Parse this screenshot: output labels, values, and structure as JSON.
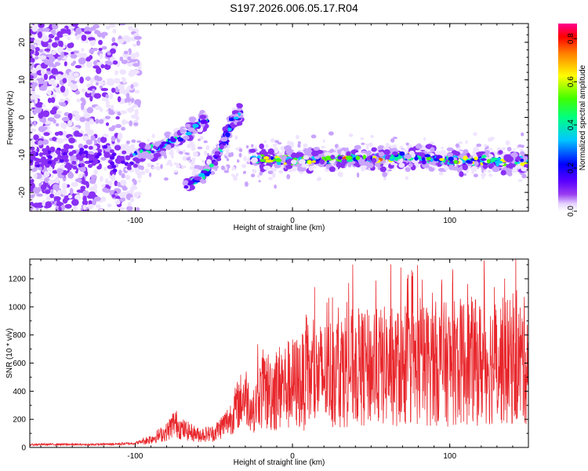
{
  "title": "S197.2026.006.05.17.R04",
  "colors": {
    "snr_line": "#e8262b",
    "axes": "#000000",
    "background": "#ffffff"
  },
  "chart_data": [
    {
      "type": "heatmap",
      "xlabel": "Height of straight line (km)",
      "ylabel": "Frequency (Hz)",
      "xlim": [
        -167,
        150
      ],
      "ylim": [
        -25,
        25
      ],
      "x_ticks": [
        -100,
        0,
        100
      ],
      "y_ticks": [
        -20,
        -10,
        0,
        10,
        20
      ],
      "grid": false,
      "colorbar": {
        "label": "Normalized spectral amplitude",
        "range": [
          0,
          0.87
        ],
        "ticks": [
          "0.0",
          "0.2",
          "0.4",
          "0.6",
          "0.8"
        ],
        "colormap": [
          "#ffffff",
          "#e4d2ff",
          "#9a3df0",
          "#5a00ff",
          "#0000ff",
          "#00c8ff",
          "#00ff80",
          "#40ff00",
          "#ffff00",
          "#ff8000",
          "#ff0000",
          "#ff0090"
        ]
      },
      "traces": [
        {
          "description": "main track",
          "x": [
            -25,
            0,
            25,
            50,
            75,
            100,
            125,
            150
          ],
          "y": [
            -11,
            -11.5,
            -11,
            -11,
            -10.5,
            -11.5,
            -11.5,
            -12
          ]
        },
        {
          "description": "rising track",
          "x": [
            -100,
            -85,
            -70,
            -60,
            -55
          ],
          "y": [
            -10,
            -8,
            -5,
            -2,
            -1
          ]
        },
        {
          "description": "steep track",
          "x": [
            -68,
            -55,
            -45,
            -38,
            -33
          ],
          "y": [
            -18,
            -15,
            -8,
            -1,
            1
          ]
        }
      ]
    },
    {
      "type": "line",
      "xlabel": "Height of straight line (km)",
      "ylabel": "SNR (10 * v/v)",
      "xlim": [
        -167,
        150
      ],
      "ylim": [
        0,
        1340
      ],
      "x_ticks": [
        -100,
        0,
        100
      ],
      "y_ticks": [
        0,
        200,
        400,
        600,
        800,
        1000,
        1200
      ],
      "grid": false,
      "series": [
        {
          "x": [
            -167,
            -150,
            -130,
            -110,
            -100,
            -90,
            -80,
            -75,
            -70,
            -60,
            -50,
            -40,
            -35,
            -30,
            -25,
            -20,
            -15,
            -10,
            0,
            10,
            20,
            30,
            40,
            50,
            60,
            70,
            80,
            90,
            100,
            110,
            120,
            130,
            140,
            150
          ],
          "values": [
            20,
            22,
            20,
            25,
            30,
            60,
            110,
            180,
            130,
            90,
            100,
            200,
            300,
            380,
            250,
            400,
            400,
            420,
            450,
            480,
            520,
            560,
            570,
            560,
            580,
            560,
            580,
            600,
            590,
            620,
            600,
            620,
            600,
            620
          ]
        }
      ]
    }
  ]
}
